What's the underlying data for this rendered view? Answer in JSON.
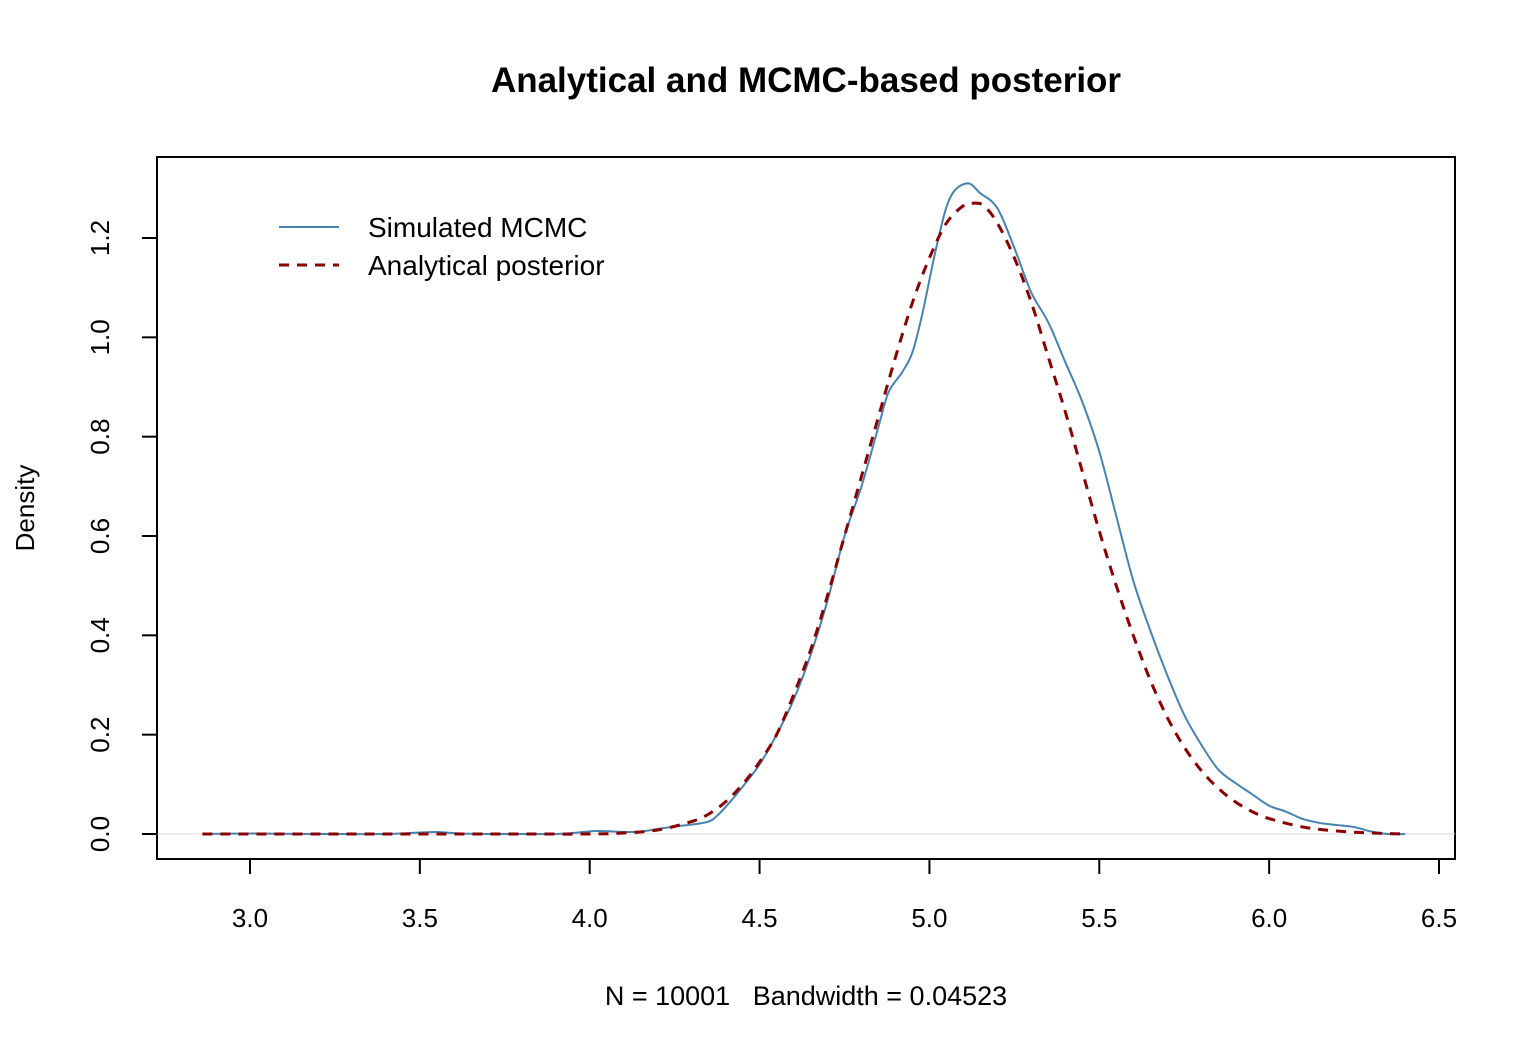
{
  "colors": {
    "simulated": "#4682B4",
    "analytical": "#8B0000",
    "zero_line": "#d9d9d9"
  },
  "chart_data": {
    "type": "line",
    "title": "Analytical and MCMC-based posterior",
    "xlabel": "N = 10001   Bandwidth = 0.04523",
    "ylabel": "Density",
    "xlim": [
      2.86,
      6.5
    ],
    "ylim": [
      -0.05,
      1.35
    ],
    "x_ticks": [
      3.0,
      3.5,
      4.0,
      4.5,
      5.0,
      5.5,
      6.0,
      6.5
    ],
    "x_tick_labels": [
      "3.0",
      "3.5",
      "4.0",
      "4.5",
      "5.0",
      "5.5",
      "6.0",
      "6.5"
    ],
    "y_ticks": [
      0.0,
      0.2,
      0.4,
      0.6,
      0.8,
      1.0,
      1.2
    ],
    "y_tick_labels": [
      "0.0",
      "0.2",
      "0.4",
      "0.6",
      "0.8",
      "1.0",
      "1.2"
    ],
    "grid": false,
    "legend": {
      "position": "top-left",
      "entries": [
        {
          "label": "Simulated MCMC",
          "series": "simulated"
        },
        {
          "label": "Analytical posterior",
          "series": "analytical"
        }
      ]
    },
    "series": [
      {
        "name": "Simulated MCMC",
        "key": "simulated",
        "style": "solid",
        "points": [
          [
            2.86,
            0.0
          ],
          [
            3.0,
            0.001
          ],
          [
            3.2,
            0.0
          ],
          [
            3.4,
            0.0
          ],
          [
            3.5,
            0.003
          ],
          [
            3.55,
            0.004
          ],
          [
            3.62,
            0.001
          ],
          [
            3.7,
            0.0
          ],
          [
            3.8,
            0.0
          ],
          [
            3.9,
            0.0
          ],
          [
            3.95,
            0.002
          ],
          [
            4.02,
            0.006
          ],
          [
            4.1,
            0.004
          ],
          [
            4.15,
            0.005
          ],
          [
            4.2,
            0.01
          ],
          [
            4.25,
            0.015
          ],
          [
            4.3,
            0.019
          ],
          [
            4.35,
            0.025
          ],
          [
            4.38,
            0.04
          ],
          [
            4.42,
            0.07
          ],
          [
            4.45,
            0.095
          ],
          [
            4.5,
            0.14
          ],
          [
            4.55,
            0.2
          ],
          [
            4.6,
            0.27
          ],
          [
            4.65,
            0.36
          ],
          [
            4.7,
            0.47
          ],
          [
            4.75,
            0.6
          ],
          [
            4.8,
            0.7
          ],
          [
            4.85,
            0.82
          ],
          [
            4.88,
            0.89
          ],
          [
            4.92,
            0.93
          ],
          [
            4.95,
            0.97
          ],
          [
            4.98,
            1.05
          ],
          [
            5.02,
            1.18
          ],
          [
            5.06,
            1.28
          ],
          [
            5.11,
            1.31
          ],
          [
            5.15,
            1.29
          ],
          [
            5.2,
            1.26
          ],
          [
            5.25,
            1.18
          ],
          [
            5.3,
            1.09
          ],
          [
            5.35,
            1.03
          ],
          [
            5.4,
            0.95
          ],
          [
            5.45,
            0.87
          ],
          [
            5.5,
            0.77
          ],
          [
            5.55,
            0.64
          ],
          [
            5.6,
            0.51
          ],
          [
            5.65,
            0.41
          ],
          [
            5.7,
            0.32
          ],
          [
            5.75,
            0.24
          ],
          [
            5.8,
            0.18
          ],
          [
            5.85,
            0.13
          ],
          [
            5.9,
            0.103
          ],
          [
            5.95,
            0.08
          ],
          [
            6.0,
            0.057
          ],
          [
            6.05,
            0.045
          ],
          [
            6.1,
            0.03
          ],
          [
            6.15,
            0.022
          ],
          [
            6.2,
            0.018
          ],
          [
            6.25,
            0.014
          ],
          [
            6.3,
            0.005
          ],
          [
            6.35,
            0.0
          ],
          [
            6.4,
            0.0
          ]
        ]
      },
      {
        "name": "Analytical posterior",
        "key": "analytical",
        "style": "dashed",
        "points": [
          [
            2.86,
            0.0
          ],
          [
            3.0,
            0.0
          ],
          [
            3.2,
            0.0
          ],
          [
            3.4,
            0.0
          ],
          [
            3.6,
            0.0
          ],
          [
            3.8,
            0.0
          ],
          [
            4.0,
            0.0
          ],
          [
            4.1,
            0.002
          ],
          [
            4.2,
            0.008
          ],
          [
            4.3,
            0.025
          ],
          [
            4.35,
            0.04
          ],
          [
            4.4,
            0.065
          ],
          [
            4.45,
            0.1
          ],
          [
            4.5,
            0.145
          ],
          [
            4.55,
            0.2
          ],
          [
            4.6,
            0.28
          ],
          [
            4.65,
            0.37
          ],
          [
            4.7,
            0.48
          ],
          [
            4.75,
            0.6
          ],
          [
            4.8,
            0.72
          ],
          [
            4.85,
            0.84
          ],
          [
            4.9,
            0.96
          ],
          [
            4.95,
            1.07
          ],
          [
            5.0,
            1.16
          ],
          [
            5.05,
            1.23
          ],
          [
            5.1,
            1.265
          ],
          [
            5.13,
            1.27
          ],
          [
            5.16,
            1.265
          ],
          [
            5.2,
            1.23
          ],
          [
            5.25,
            1.16
          ],
          [
            5.3,
            1.07
          ],
          [
            5.35,
            0.96
          ],
          [
            5.4,
            0.85
          ],
          [
            5.45,
            0.73
          ],
          [
            5.5,
            0.61
          ],
          [
            5.55,
            0.5
          ],
          [
            5.6,
            0.4
          ],
          [
            5.65,
            0.31
          ],
          [
            5.7,
            0.235
          ],
          [
            5.75,
            0.175
          ],
          [
            5.8,
            0.128
          ],
          [
            5.85,
            0.092
          ],
          [
            5.9,
            0.065
          ],
          [
            5.95,
            0.045
          ],
          [
            6.0,
            0.031
          ],
          [
            6.1,
            0.014
          ],
          [
            6.2,
            0.006
          ],
          [
            6.3,
            0.002
          ],
          [
            6.4,
            0.0
          ]
        ]
      }
    ]
  }
}
